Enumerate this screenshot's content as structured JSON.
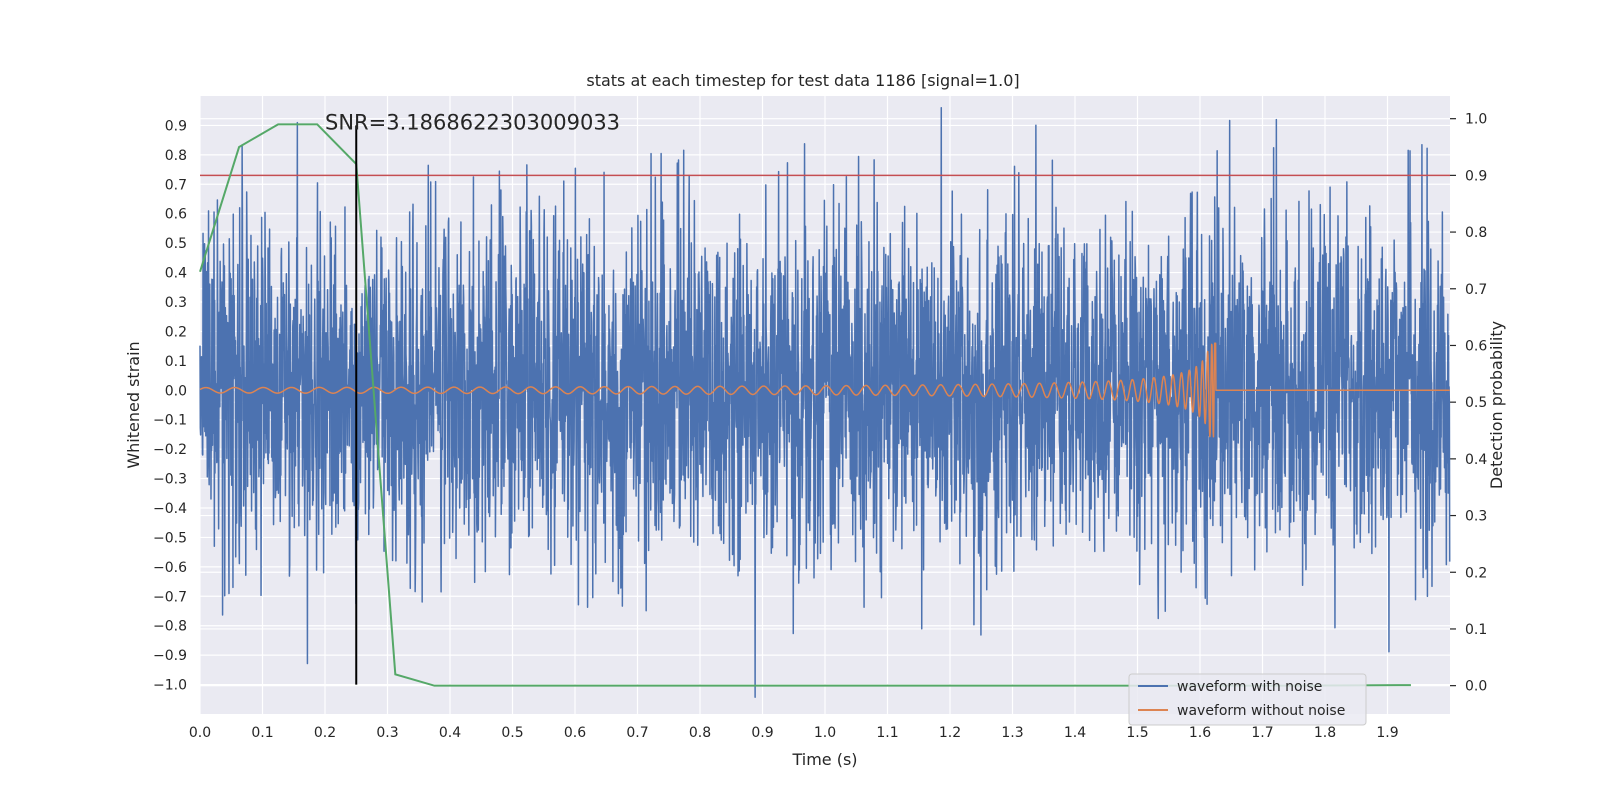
{
  "chart_data": {
    "type": "line",
    "title": "stats at each timestep for test data 1186 [signal=1.0]",
    "xlabel": "Time (s)",
    "ylabel": "Whitened strain",
    "ylabel_right": "Detection probability",
    "xlim": [
      0.0,
      2.0
    ],
    "ylim": [
      -1.1,
      1.0
    ],
    "ylim_right": [
      -0.05,
      1.04
    ],
    "grid": true,
    "legend_position": "lower-right",
    "x_ticks": [
      "0.0",
      "0.1",
      "0.2",
      "0.3",
      "0.4",
      "0.5",
      "0.6",
      "0.7",
      "0.8",
      "0.9",
      "1.0",
      "1.1",
      "1.2",
      "1.3",
      "1.4",
      "1.5",
      "1.6",
      "1.7",
      "1.8",
      "1.9"
    ],
    "y_ticks": [
      "0.9",
      "0.8",
      "0.7",
      "0.6",
      "0.5",
      "0.4",
      "0.3",
      "0.2",
      "0.1",
      "0.0",
      "−0.1",
      "−0.2",
      "−0.3",
      "−0.4",
      "−0.5",
      "−0.6",
      "−0.7",
      "−0.8",
      "−0.9",
      "−1.0"
    ],
    "y_ticks_right": [
      "1.0",
      "0.9",
      "0.8",
      "0.7",
      "0.6",
      "0.5",
      "0.4",
      "0.3",
      "0.2",
      "0.1",
      "0.0"
    ],
    "annotation": {
      "text": "SNR=3.1868622303009033",
      "x": 0.2,
      "y": 0.9
    },
    "marker_vline": {
      "x": 0.25,
      "y_range": [
        -1.0,
        0.9
      ],
      "color": "#000000"
    },
    "threshold_hline": {
      "y_right": 0.9,
      "color": "#c44e52"
    },
    "series": [
      {
        "name": "waveform with noise",
        "color": "#4c72b0",
        "generator": "noise",
        "sample_rate": 2048,
        "seed": 1186,
        "amplitude": 0.29,
        "x_range": [
          0.0,
          2.0
        ]
      },
      {
        "name": "waveform without noise",
        "color": "#dd8452",
        "generator": "chirp",
        "t_merge": 1.625,
        "f0": 6.0,
        "x_range": [
          0.0,
          2.0
        ]
      },
      {
        "name": "detection probability",
        "color": "#55a868",
        "axis": "right",
        "legend": false,
        "x": [
          0.0,
          0.0625,
          0.125,
          0.1875,
          0.25,
          0.3125,
          0.375,
          0.4375,
          0.5,
          0.75,
          1.0,
          1.25,
          1.5,
          1.75,
          1.9375
        ],
        "values": [
          0.73,
          0.95,
          0.99,
          0.99,
          0.92,
          0.02,
          0.0,
          0.0,
          0.0,
          0.0,
          0.0,
          0.0,
          0.0,
          0.0,
          0.001
        ]
      }
    ]
  }
}
